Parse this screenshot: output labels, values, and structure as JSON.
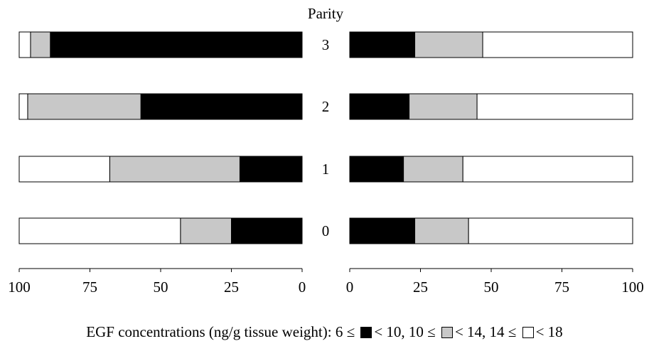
{
  "chart_data": {
    "type": "bar",
    "orientation": "horizontal",
    "stacked": true,
    "title": "Parity",
    "categories": [
      "3",
      "2",
      "1",
      "0"
    ],
    "colors": [
      "#000000",
      "#c8c8c8",
      "#ffffff"
    ],
    "panels": [
      {
        "direction": "reversed",
        "xlim": [
          100,
          0
        ],
        "ticks": [
          100,
          75,
          50,
          25,
          0
        ],
        "tick_labels": [
          "100",
          "75",
          "50",
          "25",
          "0"
        ],
        "series": [
          {
            "values": [
              89,
              57,
              22,
              25
            ]
          },
          {
            "values": [
              7,
              40,
              46,
              18
            ]
          },
          {
            "values": [
              4,
              3,
              32,
              57
            ]
          }
        ]
      },
      {
        "direction": "normal",
        "xlim": [
          0,
          100
        ],
        "ticks": [
          0,
          25,
          50,
          75,
          100
        ],
        "tick_labels": [
          "0",
          "25",
          "50",
          "75",
          "100"
        ],
        "series": [
          {
            "values": [
              23,
              21,
              19,
              23
            ]
          },
          {
            "values": [
              24,
              24,
              21,
              19
            ]
          },
          {
            "values": [
              53,
              55,
              60,
              58
            ]
          }
        ]
      }
    ],
    "legend": {
      "position": "bottom",
      "prefix": "EGF concentrations (ng/g tissue weight): 6 ≤",
      "entry1": "< 10, 10 ≤",
      "entry2": "< 14, 14 ≤",
      "entry3": "< 18"
    }
  }
}
